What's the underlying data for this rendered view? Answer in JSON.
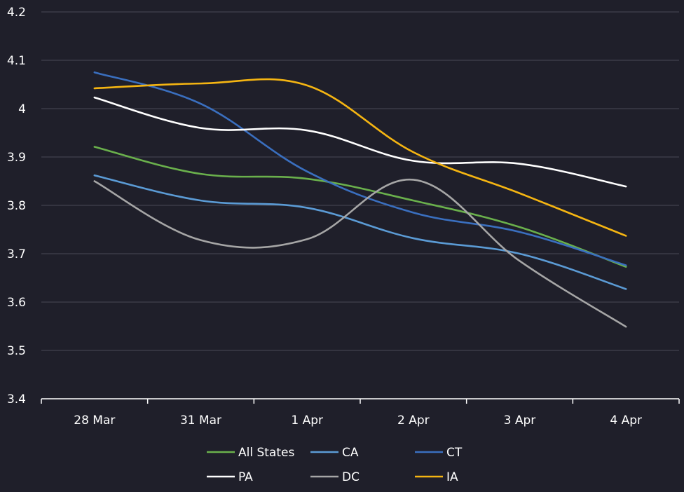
{
  "chart_data": {
    "type": "line",
    "title": "",
    "xlabel": "",
    "ylabel": "",
    "ylim": [
      3.4,
      4.2
    ],
    "ytick_labels": [
      "3.4",
      "3.5",
      "3.6",
      "3.7",
      "3.8",
      "3.9",
      "4",
      "4.1",
      "4.2"
    ],
    "grid": "horizontal",
    "legend_position": "bottom",
    "categories": [
      "28 Mar",
      "31 Mar",
      "1 Apr",
      "2 Apr",
      "3 Apr",
      "4 Apr"
    ],
    "series": [
      {
        "name": "All States",
        "color": "#6ab04c",
        "values": [
          3.921,
          3.865,
          3.855,
          3.81,
          3.755,
          3.673
        ]
      },
      {
        "name": "CA",
        "color": "#5b9bd5",
        "values": [
          3.862,
          3.81,
          3.795,
          3.732,
          3.7,
          3.627
        ]
      },
      {
        "name": "CT",
        "color": "#3a6fbf",
        "values": [
          4.075,
          4.01,
          3.87,
          3.785,
          3.745,
          3.676
        ]
      },
      {
        "name": "PA",
        "color": "#ffffff",
        "values": [
          4.023,
          3.96,
          3.955,
          3.892,
          3.886,
          3.839
        ]
      },
      {
        "name": "DC",
        "color": "#a6a6a6",
        "values": [
          3.85,
          3.728,
          3.73,
          3.853,
          3.685,
          3.549
        ]
      },
      {
        "name": "IA",
        "color": "#f5b512",
        "values": [
          4.042,
          4.052,
          4.048,
          3.91,
          3.825,
          3.737
        ]
      }
    ]
  }
}
